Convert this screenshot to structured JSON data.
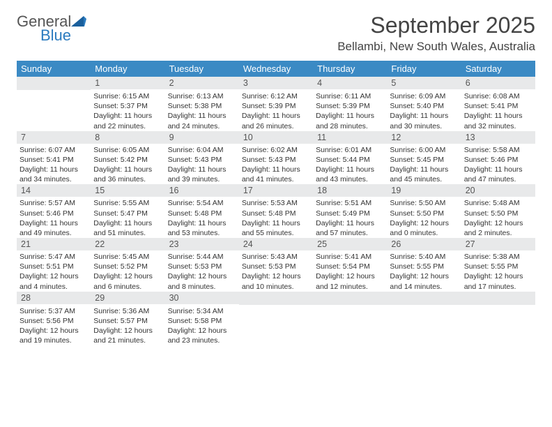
{
  "logo": {
    "part1": "General",
    "part2": "Blue"
  },
  "title": "September 2025",
  "location": "Bellambi, New South Wales, Australia",
  "colors": {
    "header_bg": "#3b8ac4",
    "header_text": "#ffffff",
    "row_divider": "#2a5f8f",
    "daynum_bg": "#e8e9ea",
    "text": "#333333",
    "logo_blue": "#2b7bbf"
  },
  "days_of_week": [
    "Sunday",
    "Monday",
    "Tuesday",
    "Wednesday",
    "Thursday",
    "Friday",
    "Saturday"
  ],
  "weeks": [
    [
      {
        "n": "",
        "sr": "",
        "ss": "",
        "dl": ""
      },
      {
        "n": "1",
        "sr": "Sunrise: 6:15 AM",
        "ss": "Sunset: 5:37 PM",
        "dl": "Daylight: 11 hours and 22 minutes."
      },
      {
        "n": "2",
        "sr": "Sunrise: 6:13 AM",
        "ss": "Sunset: 5:38 PM",
        "dl": "Daylight: 11 hours and 24 minutes."
      },
      {
        "n": "3",
        "sr": "Sunrise: 6:12 AM",
        "ss": "Sunset: 5:39 PM",
        "dl": "Daylight: 11 hours and 26 minutes."
      },
      {
        "n": "4",
        "sr": "Sunrise: 6:11 AM",
        "ss": "Sunset: 5:39 PM",
        "dl": "Daylight: 11 hours and 28 minutes."
      },
      {
        "n": "5",
        "sr": "Sunrise: 6:09 AM",
        "ss": "Sunset: 5:40 PM",
        "dl": "Daylight: 11 hours and 30 minutes."
      },
      {
        "n": "6",
        "sr": "Sunrise: 6:08 AM",
        "ss": "Sunset: 5:41 PM",
        "dl": "Daylight: 11 hours and 32 minutes."
      }
    ],
    [
      {
        "n": "7",
        "sr": "Sunrise: 6:07 AM",
        "ss": "Sunset: 5:41 PM",
        "dl": "Daylight: 11 hours and 34 minutes."
      },
      {
        "n": "8",
        "sr": "Sunrise: 6:05 AM",
        "ss": "Sunset: 5:42 PM",
        "dl": "Daylight: 11 hours and 36 minutes."
      },
      {
        "n": "9",
        "sr": "Sunrise: 6:04 AM",
        "ss": "Sunset: 5:43 PM",
        "dl": "Daylight: 11 hours and 39 minutes."
      },
      {
        "n": "10",
        "sr": "Sunrise: 6:02 AM",
        "ss": "Sunset: 5:43 PM",
        "dl": "Daylight: 11 hours and 41 minutes."
      },
      {
        "n": "11",
        "sr": "Sunrise: 6:01 AM",
        "ss": "Sunset: 5:44 PM",
        "dl": "Daylight: 11 hours and 43 minutes."
      },
      {
        "n": "12",
        "sr": "Sunrise: 6:00 AM",
        "ss": "Sunset: 5:45 PM",
        "dl": "Daylight: 11 hours and 45 minutes."
      },
      {
        "n": "13",
        "sr": "Sunrise: 5:58 AM",
        "ss": "Sunset: 5:46 PM",
        "dl": "Daylight: 11 hours and 47 minutes."
      }
    ],
    [
      {
        "n": "14",
        "sr": "Sunrise: 5:57 AM",
        "ss": "Sunset: 5:46 PM",
        "dl": "Daylight: 11 hours and 49 minutes."
      },
      {
        "n": "15",
        "sr": "Sunrise: 5:55 AM",
        "ss": "Sunset: 5:47 PM",
        "dl": "Daylight: 11 hours and 51 minutes."
      },
      {
        "n": "16",
        "sr": "Sunrise: 5:54 AM",
        "ss": "Sunset: 5:48 PM",
        "dl": "Daylight: 11 hours and 53 minutes."
      },
      {
        "n": "17",
        "sr": "Sunrise: 5:53 AM",
        "ss": "Sunset: 5:48 PM",
        "dl": "Daylight: 11 hours and 55 minutes."
      },
      {
        "n": "18",
        "sr": "Sunrise: 5:51 AM",
        "ss": "Sunset: 5:49 PM",
        "dl": "Daylight: 11 hours and 57 minutes."
      },
      {
        "n": "19",
        "sr": "Sunrise: 5:50 AM",
        "ss": "Sunset: 5:50 PM",
        "dl": "Daylight: 12 hours and 0 minutes."
      },
      {
        "n": "20",
        "sr": "Sunrise: 5:48 AM",
        "ss": "Sunset: 5:50 PM",
        "dl": "Daylight: 12 hours and 2 minutes."
      }
    ],
    [
      {
        "n": "21",
        "sr": "Sunrise: 5:47 AM",
        "ss": "Sunset: 5:51 PM",
        "dl": "Daylight: 12 hours and 4 minutes."
      },
      {
        "n": "22",
        "sr": "Sunrise: 5:45 AM",
        "ss": "Sunset: 5:52 PM",
        "dl": "Daylight: 12 hours and 6 minutes."
      },
      {
        "n": "23",
        "sr": "Sunrise: 5:44 AM",
        "ss": "Sunset: 5:53 PM",
        "dl": "Daylight: 12 hours and 8 minutes."
      },
      {
        "n": "24",
        "sr": "Sunrise: 5:43 AM",
        "ss": "Sunset: 5:53 PM",
        "dl": "Daylight: 12 hours and 10 minutes."
      },
      {
        "n": "25",
        "sr": "Sunrise: 5:41 AM",
        "ss": "Sunset: 5:54 PM",
        "dl": "Daylight: 12 hours and 12 minutes."
      },
      {
        "n": "26",
        "sr": "Sunrise: 5:40 AM",
        "ss": "Sunset: 5:55 PM",
        "dl": "Daylight: 12 hours and 14 minutes."
      },
      {
        "n": "27",
        "sr": "Sunrise: 5:38 AM",
        "ss": "Sunset: 5:55 PM",
        "dl": "Daylight: 12 hours and 17 minutes."
      }
    ],
    [
      {
        "n": "28",
        "sr": "Sunrise: 5:37 AM",
        "ss": "Sunset: 5:56 PM",
        "dl": "Daylight: 12 hours and 19 minutes."
      },
      {
        "n": "29",
        "sr": "Sunrise: 5:36 AM",
        "ss": "Sunset: 5:57 PM",
        "dl": "Daylight: 12 hours and 21 minutes."
      },
      {
        "n": "30",
        "sr": "Sunrise: 5:34 AM",
        "ss": "Sunset: 5:58 PM",
        "dl": "Daylight: 12 hours and 23 minutes."
      },
      {
        "n": "",
        "sr": "",
        "ss": "",
        "dl": ""
      },
      {
        "n": "",
        "sr": "",
        "ss": "",
        "dl": ""
      },
      {
        "n": "",
        "sr": "",
        "ss": "",
        "dl": ""
      },
      {
        "n": "",
        "sr": "",
        "ss": "",
        "dl": ""
      }
    ]
  ]
}
